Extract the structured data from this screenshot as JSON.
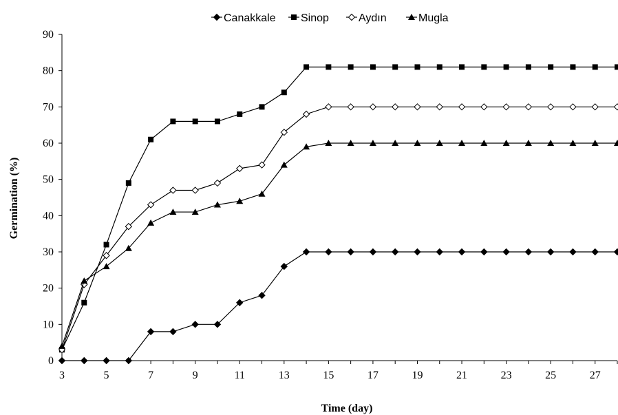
{
  "chart_data": {
    "type": "line",
    "title": "",
    "xlabel": "Time (day)",
    "ylabel": "Germination (%)",
    "xlim": [
      3,
      28
    ],
    "ylim": [
      0,
      90
    ],
    "x_ticks": [
      3,
      5,
      7,
      9,
      11,
      13,
      15,
      17,
      19,
      21,
      23,
      25,
      27
    ],
    "y_ticks": [
      0,
      10,
      20,
      30,
      40,
      50,
      60,
      70,
      80,
      90
    ],
    "grid": false,
    "legend_position": "top-center",
    "x": [
      3,
      4,
      5,
      6,
      7,
      8,
      9,
      10,
      11,
      12,
      13,
      14,
      15,
      16,
      17,
      18,
      19,
      20,
      21,
      22,
      23,
      24,
      25,
      26,
      27,
      28
    ],
    "series": [
      {
        "name": "Canakkale",
        "marker": "diamond-filled",
        "color": "#000000",
        "values": [
          0,
          0,
          0,
          0,
          8,
          8,
          10,
          10,
          16,
          18,
          26,
          30,
          30,
          30,
          30,
          30,
          30,
          30,
          30,
          30,
          30,
          30,
          30,
          30,
          30,
          30
        ]
      },
      {
        "name": "Sinop",
        "marker": "square-filled",
        "color": "#000000",
        "values": [
          3,
          16,
          32,
          49,
          61,
          66,
          66,
          66,
          68,
          70,
          74,
          81,
          81,
          81,
          81,
          81,
          81,
          81,
          81,
          81,
          81,
          81,
          81,
          81,
          81,
          81
        ]
      },
      {
        "name": "Aydın",
        "marker": "diamond-open",
        "color": "#000000",
        "values": [
          3,
          21,
          29,
          37,
          43,
          47,
          47,
          49,
          53,
          54,
          63,
          68,
          70,
          70,
          70,
          70,
          70,
          70,
          70,
          70,
          70,
          70,
          70,
          70,
          70,
          70
        ]
      },
      {
        "name": "Mugla",
        "marker": "triangle-filled",
        "color": "#000000",
        "values": [
          4,
          22,
          26,
          31,
          38,
          41,
          41,
          43,
          44,
          46,
          54,
          59,
          60,
          60,
          60,
          60,
          60,
          60,
          60,
          60,
          60,
          60,
          60,
          60,
          60,
          60
        ]
      }
    ]
  }
}
